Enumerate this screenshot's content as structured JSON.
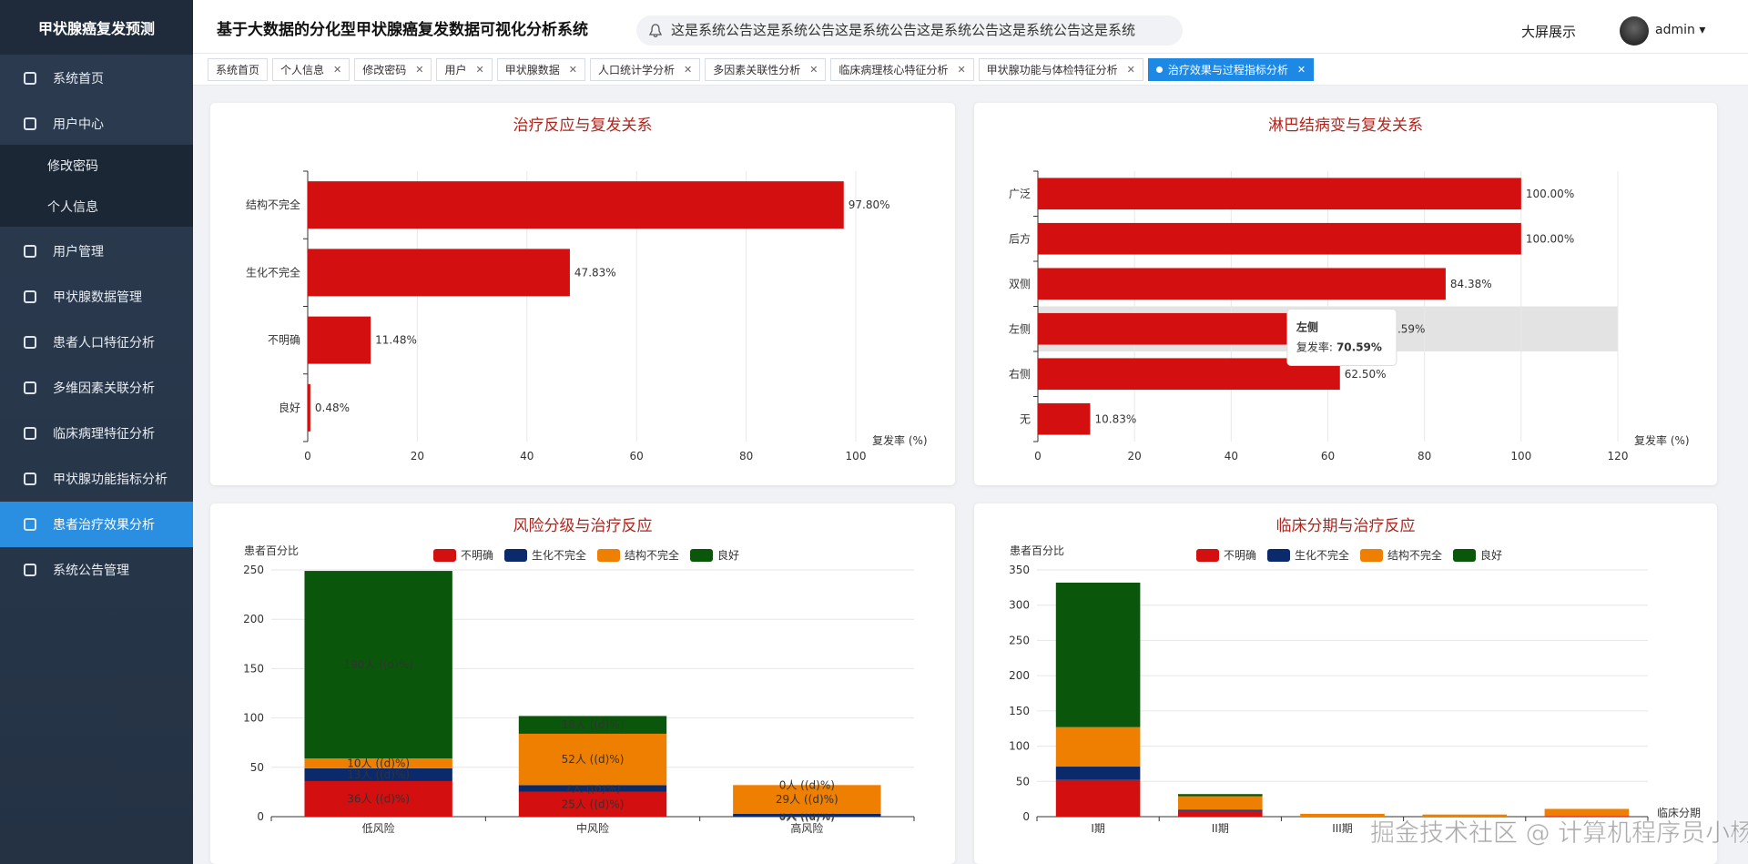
{
  "sidebar": {
    "title": "甲状腺癌复发预测",
    "menu": [
      {
        "label": "系统首页"
      },
      {
        "label": "用户中心",
        "children": [
          "修改密码",
          "个人信息"
        ]
      },
      {
        "label": "用户管理"
      },
      {
        "label": "甲状腺数据管理"
      },
      {
        "label": "患者人口特征分析"
      },
      {
        "label": "多维因素关联分析"
      },
      {
        "label": "临床病理特征分析"
      },
      {
        "label": "甲状腺功能指标分析"
      },
      {
        "label": "患者治疗效果分析",
        "active": true
      },
      {
        "label": "系统公告管理"
      }
    ]
  },
  "header": {
    "title": "基于大数据的分化型甲状腺癌复发数据可视化分析系统",
    "notice": "这是系统公告这是系统公告这是系统公告这是系统公告这是系统公告这是系统",
    "screen_button": "大屏展示",
    "user": "admin"
  },
  "tabs": [
    {
      "label": "系统首页"
    },
    {
      "label": "个人信息"
    },
    {
      "label": "修改密码"
    },
    {
      "label": "用户"
    },
    {
      "label": "甲状腺数据"
    },
    {
      "label": "人口统计学分析"
    },
    {
      "label": "多因素关联性分析"
    },
    {
      "label": "临床病理核心特征分析"
    },
    {
      "label": "甲状腺功能与体检特征分析"
    },
    {
      "label": "治疗效果与过程指标分析",
      "active": true
    }
  ],
  "chart_data": [
    {
      "type": "hbar",
      "title": "治疗反应与复发关系",
      "categories": [
        "结构不完全",
        "生化不完全",
        "不明确",
        "良好"
      ],
      "values": [
        97.8,
        47.83,
        11.48,
        0.48
      ],
      "value_labels": [
        "97.80%",
        "47.83%",
        "11.48%",
        "0.48%"
      ],
      "color": "#d40f0f",
      "xlim": [
        0,
        100
      ],
      "xticks": [
        0,
        20,
        40,
        60,
        80,
        100
      ],
      "xlabel": "复发率 (%)",
      "grid": true
    },
    {
      "type": "hbar",
      "title": "淋巴结病变与复发关系",
      "categories": [
        "广泛",
        "后方",
        "双侧",
        "左侧",
        "右侧",
        "无"
      ],
      "values": [
        100,
        100,
        84.38,
        70.59,
        62.5,
        10.83
      ],
      "value_labels": [
        "100.00%",
        "100.00%",
        "84.38%",
        "70.59%",
        "62.50%",
        "10.83%"
      ],
      "color": "#d40f0f",
      "xlim": [
        0,
        120
      ],
      "xticks": [
        0,
        20,
        40,
        60,
        80,
        100,
        120
      ],
      "xlabel": "复发率 (%)",
      "grid": true,
      "tooltip": {
        "title": "左侧",
        "label": "复发率:",
        "value": "70.59%"
      }
    },
    {
      "type": "stacked_bar",
      "title": "风险分级与治疗反应",
      "ylabel": "患者百分比",
      "categories": [
        "低风险",
        "中风险",
        "高风险"
      ],
      "series": [
        {
          "name": "不明确",
          "color": "#d40f0f",
          "values": [
            36,
            25,
            0
          ],
          "value_labels": [
            "36人 ((d)%)",
            "25人 ((d)%)",
            "0人 ((d)%)"
          ]
        },
        {
          "name": "生化不完全",
          "color": "#0b2a6b",
          "values": [
            13,
            7,
            3
          ],
          "value_labels": [
            "13人 ((d)%)",
            "7人 ((d)%)",
            "3人 ((d)%)"
          ]
        },
        {
          "name": "结构不完全",
          "color": "#ef7f00",
          "values": [
            10,
            52,
            29
          ],
          "value_labels": [
            "10人 ((d)%)",
            "52人 ((d)%)",
            "29人 ((d)%)"
          ]
        },
        {
          "name": "良好",
          "color": "#0a560a",
          "values": [
            190,
            18,
            0
          ],
          "value_labels": [
            "190人 ((d)%)",
            "18人 ((d)%)",
            "0人 ((d)%)"
          ]
        }
      ],
      "ylim": [
        0,
        250
      ],
      "yticks": [
        0,
        50,
        100,
        150,
        200,
        250
      ],
      "grid": true
    },
    {
      "type": "stacked_bar",
      "title": "临床分期与治疗反应",
      "ylabel": "患者百分比",
      "xlabel": "临床分期",
      "categories": [
        "I期",
        "II期",
        "III期",
        null,
        null
      ],
      "series": [
        {
          "name": "不明确",
          "color": "#d40f0f",
          "values": [
            52,
            8,
            0,
            0,
            1
          ]
        },
        {
          "name": "生化不完全",
          "color": "#0b2a6b",
          "values": [
            19,
            2,
            0,
            0,
            0
          ]
        },
        {
          "name": "结构不完全",
          "color": "#ef7f00",
          "values": [
            56,
            19,
            4,
            3,
            10
          ]
        },
        {
          "name": "良好",
          "color": "#0a560a",
          "values": [
            205,
            3,
            0,
            0,
            0
          ]
        }
      ],
      "ylim": [
        0,
        350
      ],
      "yticks": [
        0,
        50,
        100,
        150,
        200,
        250,
        300,
        350
      ],
      "grid": true
    }
  ],
  "watermark": "掘金技术社区 @ 计算机程序员小杨"
}
